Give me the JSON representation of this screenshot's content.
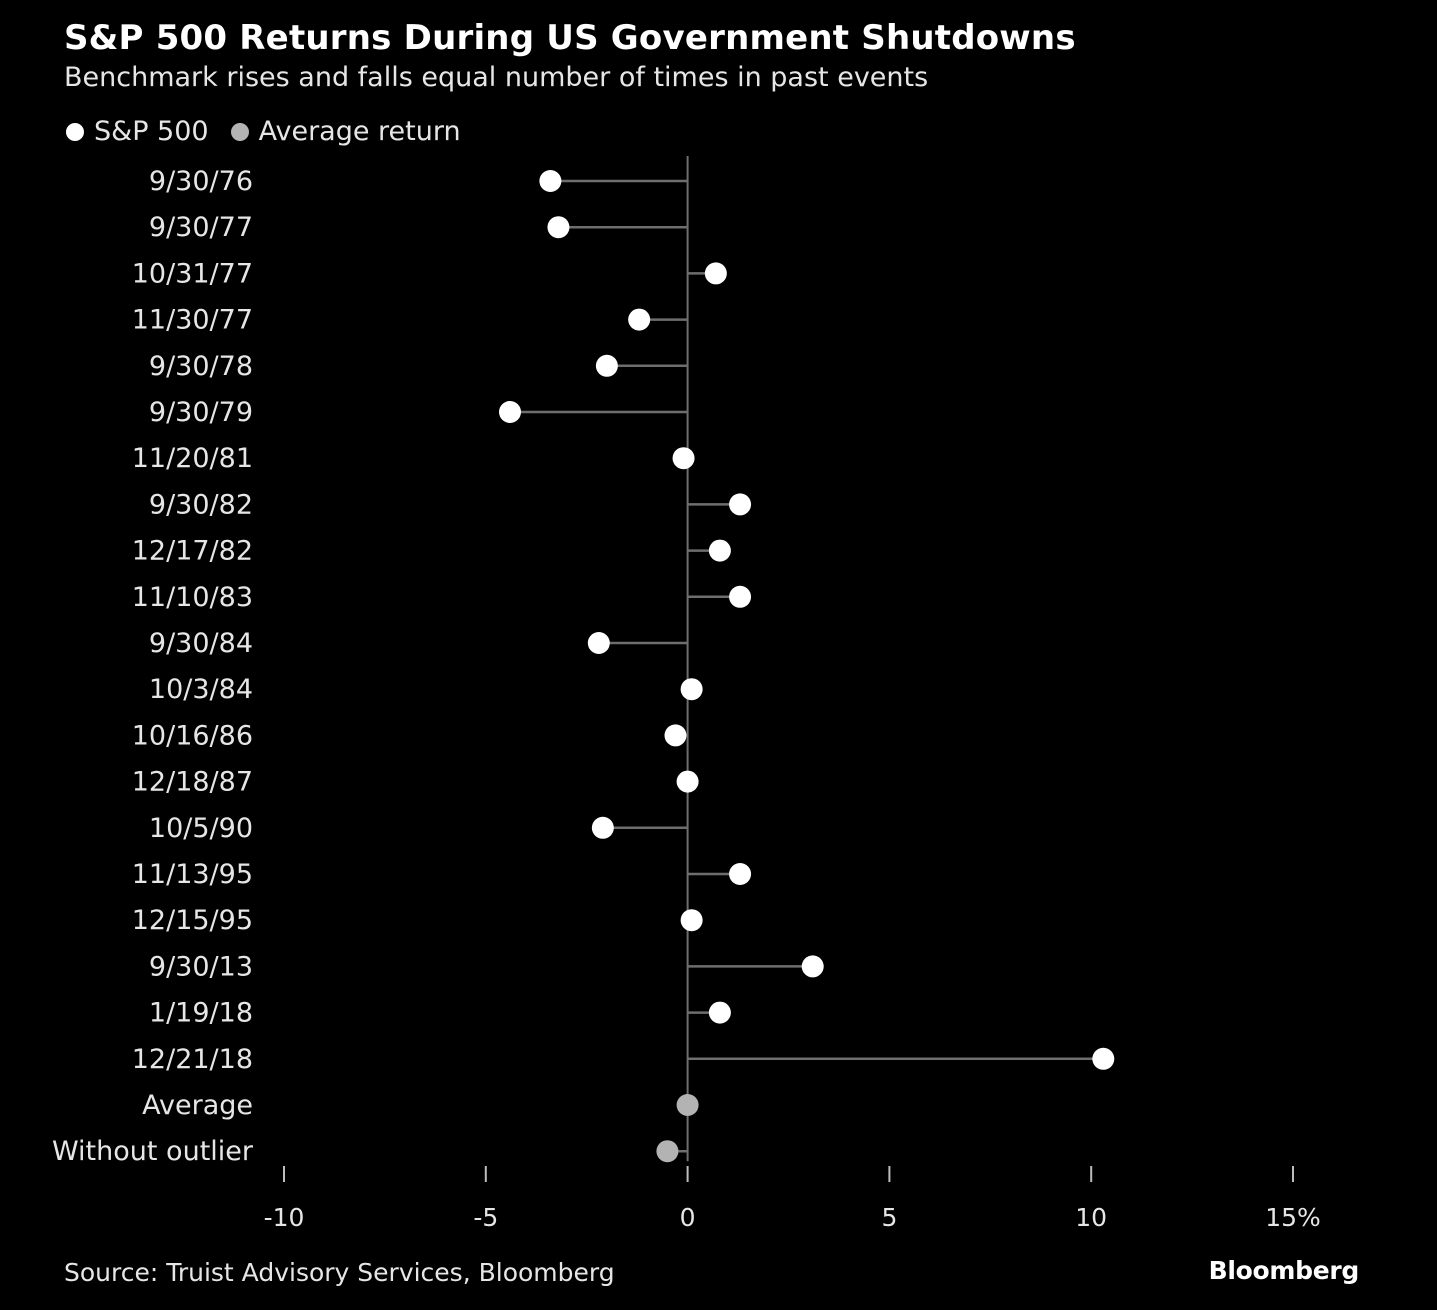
{
  "title": "S&P 500 Returns During US Government Shutdowns",
  "subtitle": "Benchmark rises and falls equal number of times in past events",
  "legend": [
    {
      "label": "S&P 500",
      "color": "#ffffff"
    },
    {
      "label": "Average return",
      "color": "#b3b3b3"
    }
  ],
  "colors": {
    "background": "#000000",
    "point": "#ffffff",
    "average_point": "#b3b3b3",
    "line": "#6e6e6e",
    "text": "#e6e6e6"
  },
  "source": "Source: Truist Advisory Services, Bloomberg",
  "brand": "Bloomberg",
  "chart_data": {
    "type": "dot-plot",
    "title": "S&P 500 Returns During US Government Shutdowns",
    "xlabel": "",
    "ylabel": "",
    "xlim": [
      -10,
      15
    ],
    "x_ticks": [
      -10,
      -5,
      0,
      5,
      10,
      15
    ],
    "x_tick_labels": [
      "-10",
      "-5",
      "0",
      "5",
      "10",
      "15%"
    ],
    "categories": [
      "9/30/76",
      "9/30/77",
      "10/31/77",
      "11/30/77",
      "9/30/78",
      "9/30/79",
      "11/20/81",
      "9/30/82",
      "12/17/82",
      "11/10/83",
      "9/30/84",
      "10/3/84",
      "10/16/86",
      "12/18/87",
      "10/5/90",
      "11/13/95",
      "12/15/95",
      "9/30/13",
      "1/19/18",
      "12/21/18",
      "Average",
      "Without outlier"
    ],
    "series": [
      {
        "name": "S&P 500",
        "color": "#ffffff",
        "values": [
          -3.4,
          -3.2,
          0.7,
          -1.2,
          -2.0,
          -4.4,
          -0.1,
          1.3,
          0.8,
          1.3,
          -2.2,
          0.1,
          -0.3,
          0.0,
          -2.1,
          1.3,
          0.1,
          3.1,
          0.8,
          10.3,
          null,
          null
        ]
      },
      {
        "name": "Average return",
        "color": "#b3b3b3",
        "values": [
          null,
          null,
          null,
          null,
          null,
          null,
          null,
          null,
          null,
          null,
          null,
          null,
          null,
          null,
          null,
          null,
          null,
          null,
          null,
          null,
          0.0,
          -0.5
        ]
      }
    ]
  }
}
